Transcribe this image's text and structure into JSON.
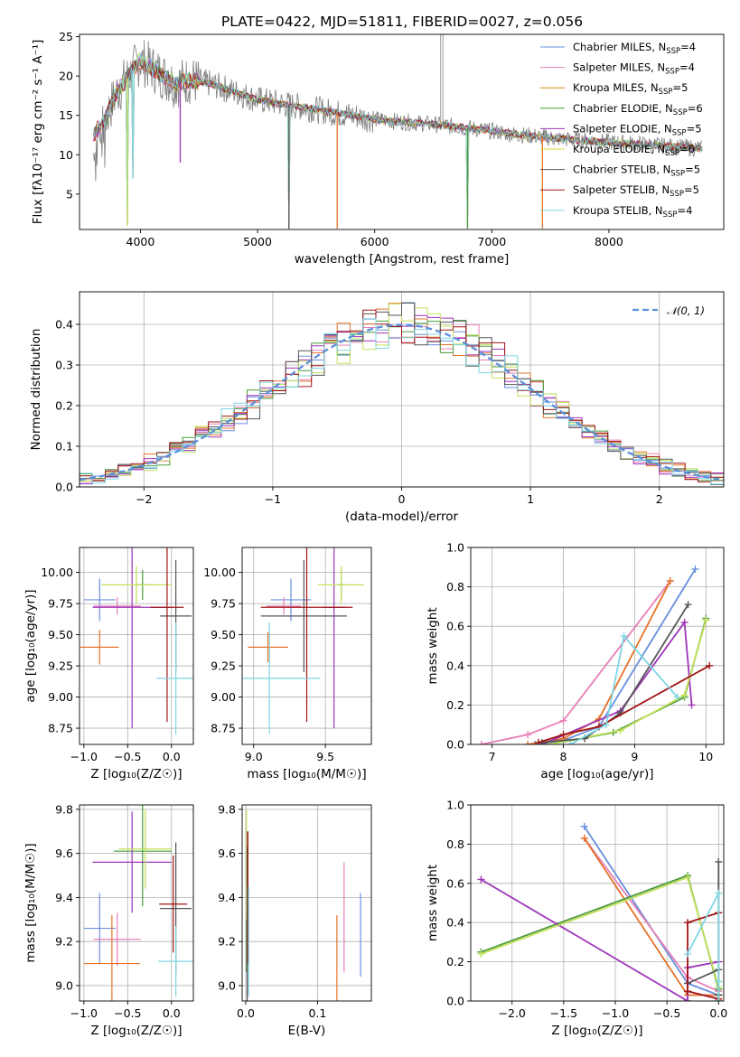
{
  "figure": {
    "title": "PLATE=0422, MJD=51811, FIBERID=0027, z=0.056"
  },
  "colors": {
    "series": [
      "#6a8fdc",
      "#e87fb8",
      "#cf8a16",
      "#4b9a3c",
      "#9d34b8",
      "#e2d640",
      "#555555",
      "#a01414",
      "#7fd6e3"
    ],
    "alt": [
      "#6a8fdc",
      "#e87fb8",
      "#e5732a",
      "#4b9a3c",
      "#9d34b8",
      "#c2e05a",
      "#555555",
      "#a01414",
      "#7fd6e3"
    ],
    "data": "#7f7f7f",
    "normal": "#5a8fd8"
  },
  "chart_data": [
    {
      "id": "spectrum",
      "type": "line",
      "xlabel": "wavelength [Angstrom, rest frame]",
      "ylabel": "Flux [fλ10⁻¹⁷ erg cm⁻² s⁻¹ A⁻¹]",
      "xlim": [
        3480,
        8980
      ],
      "ylim": [
        0.5,
        25.3
      ],
      "xticks": [
        4000,
        5000,
        6000,
        7000,
        8000
      ],
      "yticks": [
        5,
        10,
        15,
        20,
        25
      ],
      "grid": false,
      "legend": "top-right",
      "legend_entries": [
        {
          "base": "Chabrier MILES, N",
          "sub": "SSP",
          "tail": "=4"
        },
        {
          "base": "Salpeter MILES, N",
          "sub": "SSP",
          "tail": "=4"
        },
        {
          "base": "Kroupa MILES, N",
          "sub": "SSP",
          "tail": "=5"
        },
        {
          "base": "Chabrier ELODIE, N",
          "sub": "SSP",
          "tail": "=6"
        },
        {
          "base": "Salpeter ELODIE, N",
          "sub": "SSP",
          "tail": "=5"
        },
        {
          "base": "Kroupa ELODIE, N",
          "sub": "SSP",
          "tail": "=6"
        },
        {
          "base": "Chabrier STELIB, N",
          "sub": "SSP",
          "tail": "=5"
        },
        {
          "base": "Salpeter STELIB, N",
          "sub": "SSP",
          "tail": "=5"
        },
        {
          "base": "Kroupa STELIB, N",
          "sub": "SSP",
          "tail": "=4"
        }
      ],
      "continuum": {
        "x": [
          3600,
          3700,
          3800,
          3900,
          4000,
          4100,
          4200,
          4300,
          4400,
          4600,
          4800,
          5000,
          5200,
          5400,
          5600,
          5800,
          6000,
          6200,
          6400,
          6600,
          6800,
          7000,
          7200,
          7400,
          7600,
          7800,
          8000,
          8200,
          8400,
          8600,
          8800
        ],
        "y": [
          12.5,
          14.5,
          18,
          20,
          22,
          21,
          20,
          19,
          19.5,
          19,
          18,
          17,
          16.5,
          16,
          15.5,
          15,
          14.5,
          14.2,
          14,
          13.7,
          13.4,
          13,
          12.6,
          12.3,
          12,
          11.8,
          11.6,
          11.4,
          11.2,
          11,
          10.8
        ]
      },
      "absorption": [
        {
          "x": 3890,
          "y": 1.0
        },
        {
          "x": 3934,
          "y": 7.0
        },
        {
          "x": 4340,
          "y": 9.0
        },
        {
          "x": 5268,
          "y": 0.6
        },
        {
          "x": 5680,
          "y": 0.6
        },
        {
          "x": 6793,
          "y": 0.6
        },
        {
          "x": 7432,
          "y": 0.6
        }
      ],
      "emission": [
        {
          "x": 6563,
          "y": 25.3
        },
        {
          "x": 6583,
          "y": 25.3
        }
      ]
    },
    {
      "id": "residuals",
      "type": "histogram",
      "xlabel": "(data-model)/error",
      "ylabel": "Normed distribution",
      "xlim": [
        -2.5,
        2.5
      ],
      "ylim": [
        0,
        0.48
      ],
      "xticks": [
        -2,
        -1,
        0,
        1,
        2
      ],
      "yticks": [
        0.0,
        0.1,
        0.2,
        0.3,
        0.4
      ],
      "grid": true,
      "legend": "top-right",
      "legend_label": "𝒩(0, 1)",
      "bin_width": 0.1,
      "reference": {
        "type": "normal",
        "mean": 0,
        "sigma": 1
      }
    },
    {
      "id": "age-vs-Z",
      "type": "errorbar",
      "xlabel": "Z [log₁₀(Z/Z☉)]",
      "ylabel": "age  [log₁₀(age/yr)]",
      "xlim": [
        -1.05,
        0.25
      ],
      "ylim": [
        8.62,
        10.2
      ],
      "xticks": [
        -1.0,
        -0.5,
        0.0
      ],
      "yticks": [
        8.75,
        9.0,
        9.25,
        9.5,
        9.75,
        10.0
      ],
      "grid": true,
      "points": [
        {
          "x": -0.82,
          "y": 9.78,
          "xerr": 0.18,
          "yerr": 0.17,
          "c": 0
        },
        {
          "x": -0.62,
          "y": 9.73,
          "xerr": 0.27,
          "yerr": 0.07,
          "c": 1
        },
        {
          "x": -0.82,
          "y": 9.4,
          "xerr": 0.22,
          "yerr": 0.14,
          "c": 2
        },
        {
          "x": -0.33,
          "y": 9.9,
          "xerr": 0.07,
          "yerr": 0.12,
          "c": 3
        },
        {
          "x": -0.45,
          "y": 9.72,
          "xerr": 0.45,
          "yerr": 0.97,
          "c": 4
        },
        {
          "x": -0.4,
          "y": 9.9,
          "xerr": 0.4,
          "yerr": 0.15,
          "c": 5
        },
        {
          "x": 0.05,
          "y": 9.65,
          "xerr": 0.18,
          "yerr": 0.45,
          "c": 6
        },
        {
          "x": -0.05,
          "y": 9.72,
          "xerr": 0.19,
          "yerr": 0.92,
          "c": 7
        },
        {
          "x": 0.05,
          "y": 9.15,
          "xerr": 0.22,
          "yerr": 0.45,
          "c": 8
        }
      ]
    },
    {
      "id": "age-vs-mass",
      "type": "errorbar",
      "xlabel": "mass [log₁₀(M/M☉)]",
      "ylabel": "",
      "xlim": [
        8.92,
        9.82
      ],
      "ylim": [
        8.62,
        10.2
      ],
      "xticks": [
        9.0,
        9.5
      ],
      "yticks": [
        8.75,
        9.0,
        9.25,
        9.5,
        9.75,
        10.0
      ],
      "grid": true,
      "points": [
        {
          "x": 9.26,
          "y": 9.78,
          "xerr": 0.14,
          "yerr": 0.17,
          "c": 0
        },
        {
          "x": 9.21,
          "y": 9.73,
          "xerr": 0.12,
          "yerr": 0.07,
          "c": 1
        },
        {
          "x": 9.1,
          "y": 9.4,
          "xerr": 0.14,
          "yerr": 0.12,
          "c": 2
        },
        {
          "x": 9.61,
          "y": 9.9,
          "xerr": 0.03,
          "yerr": 0.12,
          "c": 3
        },
        {
          "x": 9.56,
          "y": 9.72,
          "xerr": 0.08,
          "yerr": 0.97,
          "c": 4
        },
        {
          "x": 9.61,
          "y": 9.9,
          "xerr": 0.16,
          "yerr": 0.15,
          "c": 5
        },
        {
          "x": 9.35,
          "y": 9.65,
          "xerr": 0.3,
          "yerr": 0.45,
          "c": 6
        },
        {
          "x": 9.37,
          "y": 9.72,
          "xerr": 0.32,
          "yerr": 0.92,
          "c": 7
        },
        {
          "x": 9.11,
          "y": 9.15,
          "xerr": 0.35,
          "yerr": 0.45,
          "c": 8
        }
      ]
    },
    {
      "id": "weight-vs-age",
      "type": "line",
      "xlabel": "age  [log₁₀(age/yr)]",
      "ylabel": "mass weight",
      "xlim": [
        6.7,
        10.25
      ],
      "ylim": [
        0,
        1.0
      ],
      "xticks": [
        7,
        8,
        9,
        10
      ],
      "yticks": [
        0.0,
        0.2,
        0.4,
        0.6,
        0.8,
        1.0
      ],
      "grid": true,
      "series": [
        {
          "c": 0,
          "x": [
            7.6,
            8.0,
            8.5,
            9.85
          ],
          "y": [
            0.0,
            0.02,
            0.09,
            0.89
          ]
        },
        {
          "c": 1,
          "x": [
            6.85,
            7.5,
            8.0,
            9.5
          ],
          "y": [
            0.0,
            0.05,
            0.12,
            0.83
          ]
        },
        {
          "c": 2,
          "x": [
            7.5,
            8.0,
            8.5,
            9.5
          ],
          "y": [
            0.0,
            0.03,
            0.13,
            0.83
          ]
        },
        {
          "c": 3,
          "x": [
            7.8,
            8.7,
            9.7,
            10.0
          ],
          "y": [
            0.0,
            0.06,
            0.24,
            0.64
          ]
        },
        {
          "c": 4,
          "x": [
            7.7,
            8.8,
            9.7,
            9.8
          ],
          "y": [
            0.0,
            0.17,
            0.62,
            0.2
          ]
        },
        {
          "c": 5,
          "x": [
            7.8,
            8.8,
            9.7,
            10.0
          ],
          "y": [
            0.0,
            0.07,
            0.25,
            0.63
          ]
        },
        {
          "c": 6,
          "x": [
            7.7,
            8.3,
            8.8,
            9.75
          ],
          "y": [
            0.01,
            0.03,
            0.16,
            0.71
          ]
        },
        {
          "c": 7,
          "x": [
            7.65,
            8.0,
            8.5,
            10.05
          ],
          "y": [
            0.01,
            0.05,
            0.09,
            0.4
          ]
        },
        {
          "c": 8,
          "x": [
            8.1,
            8.6,
            8.85,
            9.6
          ],
          "y": [
            0.0,
            0.1,
            0.55,
            0.24
          ]
        }
      ]
    },
    {
      "id": "mass-vs-Z",
      "type": "errorbar",
      "xlabel": "Z [log₁₀(Z/Z☉)]",
      "ylabel": "mass [log₁₀(M/M☉)]",
      "xlim": [
        -1.05,
        0.25
      ],
      "ylim": [
        8.93,
        9.82
      ],
      "xticks": [
        -1.0,
        -0.5,
        0.0
      ],
      "yticks": [
        9.0,
        9.2,
        9.4,
        9.6,
        9.8
      ],
      "grid": true,
      "points": [
        {
          "x": -0.82,
          "y": 9.26,
          "xerr": 0.18,
          "yerr": 0.16,
          "c": 0
        },
        {
          "x": -0.62,
          "y": 9.21,
          "xerr": 0.27,
          "yerr": 0.12,
          "c": 1
        },
        {
          "x": -0.68,
          "y": 9.1,
          "xerr": 0.32,
          "yerr": 0.22,
          "c": 2
        },
        {
          "x": -0.33,
          "y": 9.61,
          "xerr": 0.33,
          "yerr": 0.25,
          "c": 3
        },
        {
          "x": -0.45,
          "y": 9.56,
          "xerr": 0.45,
          "yerr": 0.23,
          "c": 4
        },
        {
          "x": -0.3,
          "y": 9.62,
          "xerr": 0.3,
          "yerr": 0.18,
          "c": 5
        },
        {
          "x": 0.05,
          "y": 9.35,
          "xerr": 0.18,
          "yerr": 0.3,
          "c": 6
        },
        {
          "x": 0.02,
          "y": 9.37,
          "xerr": 0.16,
          "yerr": 0.22,
          "c": 7
        },
        {
          "x": 0.05,
          "y": 9.11,
          "xerr": 0.2,
          "yerr": 0.16,
          "c": 8
        }
      ]
    },
    {
      "id": "mass-vs-EBV",
      "type": "errorbar",
      "xlabel": "E(B-V)",
      "ylabel": "",
      "xlim": [
        -0.005,
        0.175
      ],
      "ylim": [
        8.93,
        9.82
      ],
      "xticks": [
        0.0,
        0.1
      ],
      "yticks": [
        9.0,
        9.2,
        9.4,
        9.6,
        9.8
      ],
      "grid": true,
      "points": [
        {
          "x": 0.16,
          "y": 9.23,
          "xerr": 0,
          "yerr": 0.19,
          "c": 0
        },
        {
          "x": 0.137,
          "y": 9.31,
          "xerr": 0,
          "yerr": 0.25,
          "c": 1
        },
        {
          "x": 0.127,
          "y": 9.07,
          "xerr": 0,
          "yerr": 0.25,
          "c": 2
        },
        {
          "x": 0.001,
          "y": 9.38,
          "xerr": 0,
          "yerr": 0.32,
          "c": 3
        },
        {
          "x": 0.002,
          "y": 9.32,
          "xerr": 0,
          "yerr": 0.38,
          "c": 4
        },
        {
          "x": 0.001,
          "y": 9.55,
          "xerr": 0,
          "yerr": 0.25,
          "c": 5
        },
        {
          "x": 0.002,
          "y": 9.28,
          "xerr": 0,
          "yerr": 0.35,
          "c": 6
        },
        {
          "x": 0.003,
          "y": 9.4,
          "xerr": 0,
          "yerr": 0.3,
          "c": 7
        },
        {
          "x": 0.004,
          "y": 9.2,
          "xerr": 0,
          "yerr": 0.25,
          "c": 8
        }
      ]
    },
    {
      "id": "weight-vs-Z",
      "type": "line",
      "xlabel": "Z [log₁₀(Z/Z☉)]",
      "ylabel": "mass weight",
      "xlim": [
        -2.4,
        0.05
      ],
      "ylim": [
        0,
        1.0
      ],
      "xticks": [
        -2.0,
        -1.5,
        -1.0,
        -0.5,
        0.0
      ],
      "yticks": [
        0.0,
        0.2,
        0.4,
        0.6,
        0.8,
        1.0
      ],
      "grid": true,
      "series": [
        {
          "c": 0,
          "x": [
            -1.3,
            -0.3,
            0.0,
            0.0
          ],
          "y": [
            0.89,
            0.09,
            0.03,
            0.0
          ]
        },
        {
          "c": 1,
          "x": [
            -1.3,
            -0.3,
            0.0,
            0.0
          ],
          "y": [
            0.83,
            0.12,
            0.05,
            0.0
          ]
        },
        {
          "c": 2,
          "x": [
            -1.3,
            -0.3,
            0.0,
            0.0
          ],
          "y": [
            0.83,
            0.03,
            0.03,
            0.01
          ]
        },
        {
          "c": 3,
          "x": [
            -2.3,
            -0.3,
            0.0,
            0.0
          ],
          "y": [
            0.25,
            0.64,
            0.06,
            0.0
          ]
        },
        {
          "c": 4,
          "x": [
            -2.3,
            -0.3,
            -0.3,
            0.0
          ],
          "y": [
            0.62,
            0.0,
            0.17,
            0.2
          ]
        },
        {
          "c": 5,
          "x": [
            -2.3,
            -0.3,
            0.0,
            0.0
          ],
          "y": [
            0.24,
            0.63,
            0.07,
            0.0
          ]
        },
        {
          "c": 6,
          "x": [
            -0.3,
            0.0,
            0.0,
            0.0
          ],
          "y": [
            0.09,
            0.16,
            0.71,
            0.03
          ]
        },
        {
          "c": 7,
          "x": [
            0.0,
            -0.3,
            -0.3,
            0.0
          ],
          "y": [
            0.01,
            0.05,
            0.4,
            0.45
          ]
        },
        {
          "c": 8,
          "x": [
            -0.3,
            0.0,
            0.0,
            0.0
          ],
          "y": [
            0.24,
            0.55,
            0.1,
            0.0
          ]
        }
      ]
    }
  ]
}
